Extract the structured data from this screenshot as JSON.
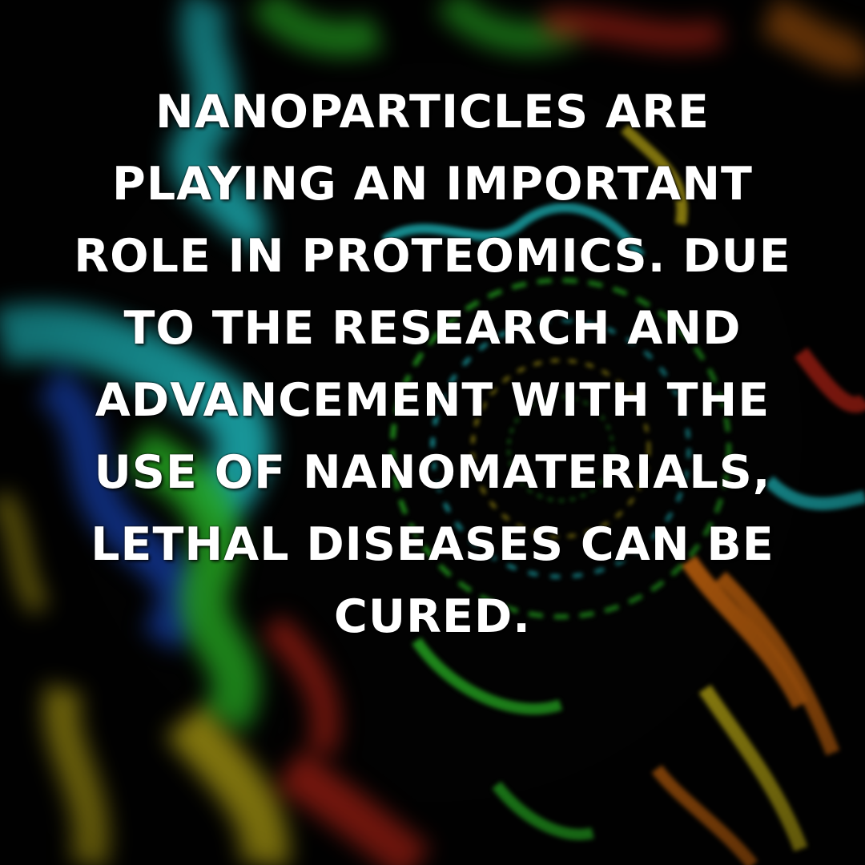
{
  "caption": {
    "lines": [
      "NANOPARTICLES ARE",
      "PLAYING AN IMPORTANT",
      "ROLE IN PROTEOMICS. DUE",
      "TO THE RESEARCH AND",
      "ADVANCEMENT WITH THE",
      "USE OF NANOMATERIALS,",
      "LETHAL DISEASES CAN BE",
      "CURED."
    ]
  },
  "background": {
    "description_icon": "protein-ribbon-illustration",
    "colors": {
      "base": "#030303",
      "cyan": "#22d3d8",
      "green": "#2fd12a",
      "yellow": "#e8d21a",
      "orange": "#f07a12",
      "red": "#d92a1a",
      "blue": "#1a4fd6"
    }
  }
}
